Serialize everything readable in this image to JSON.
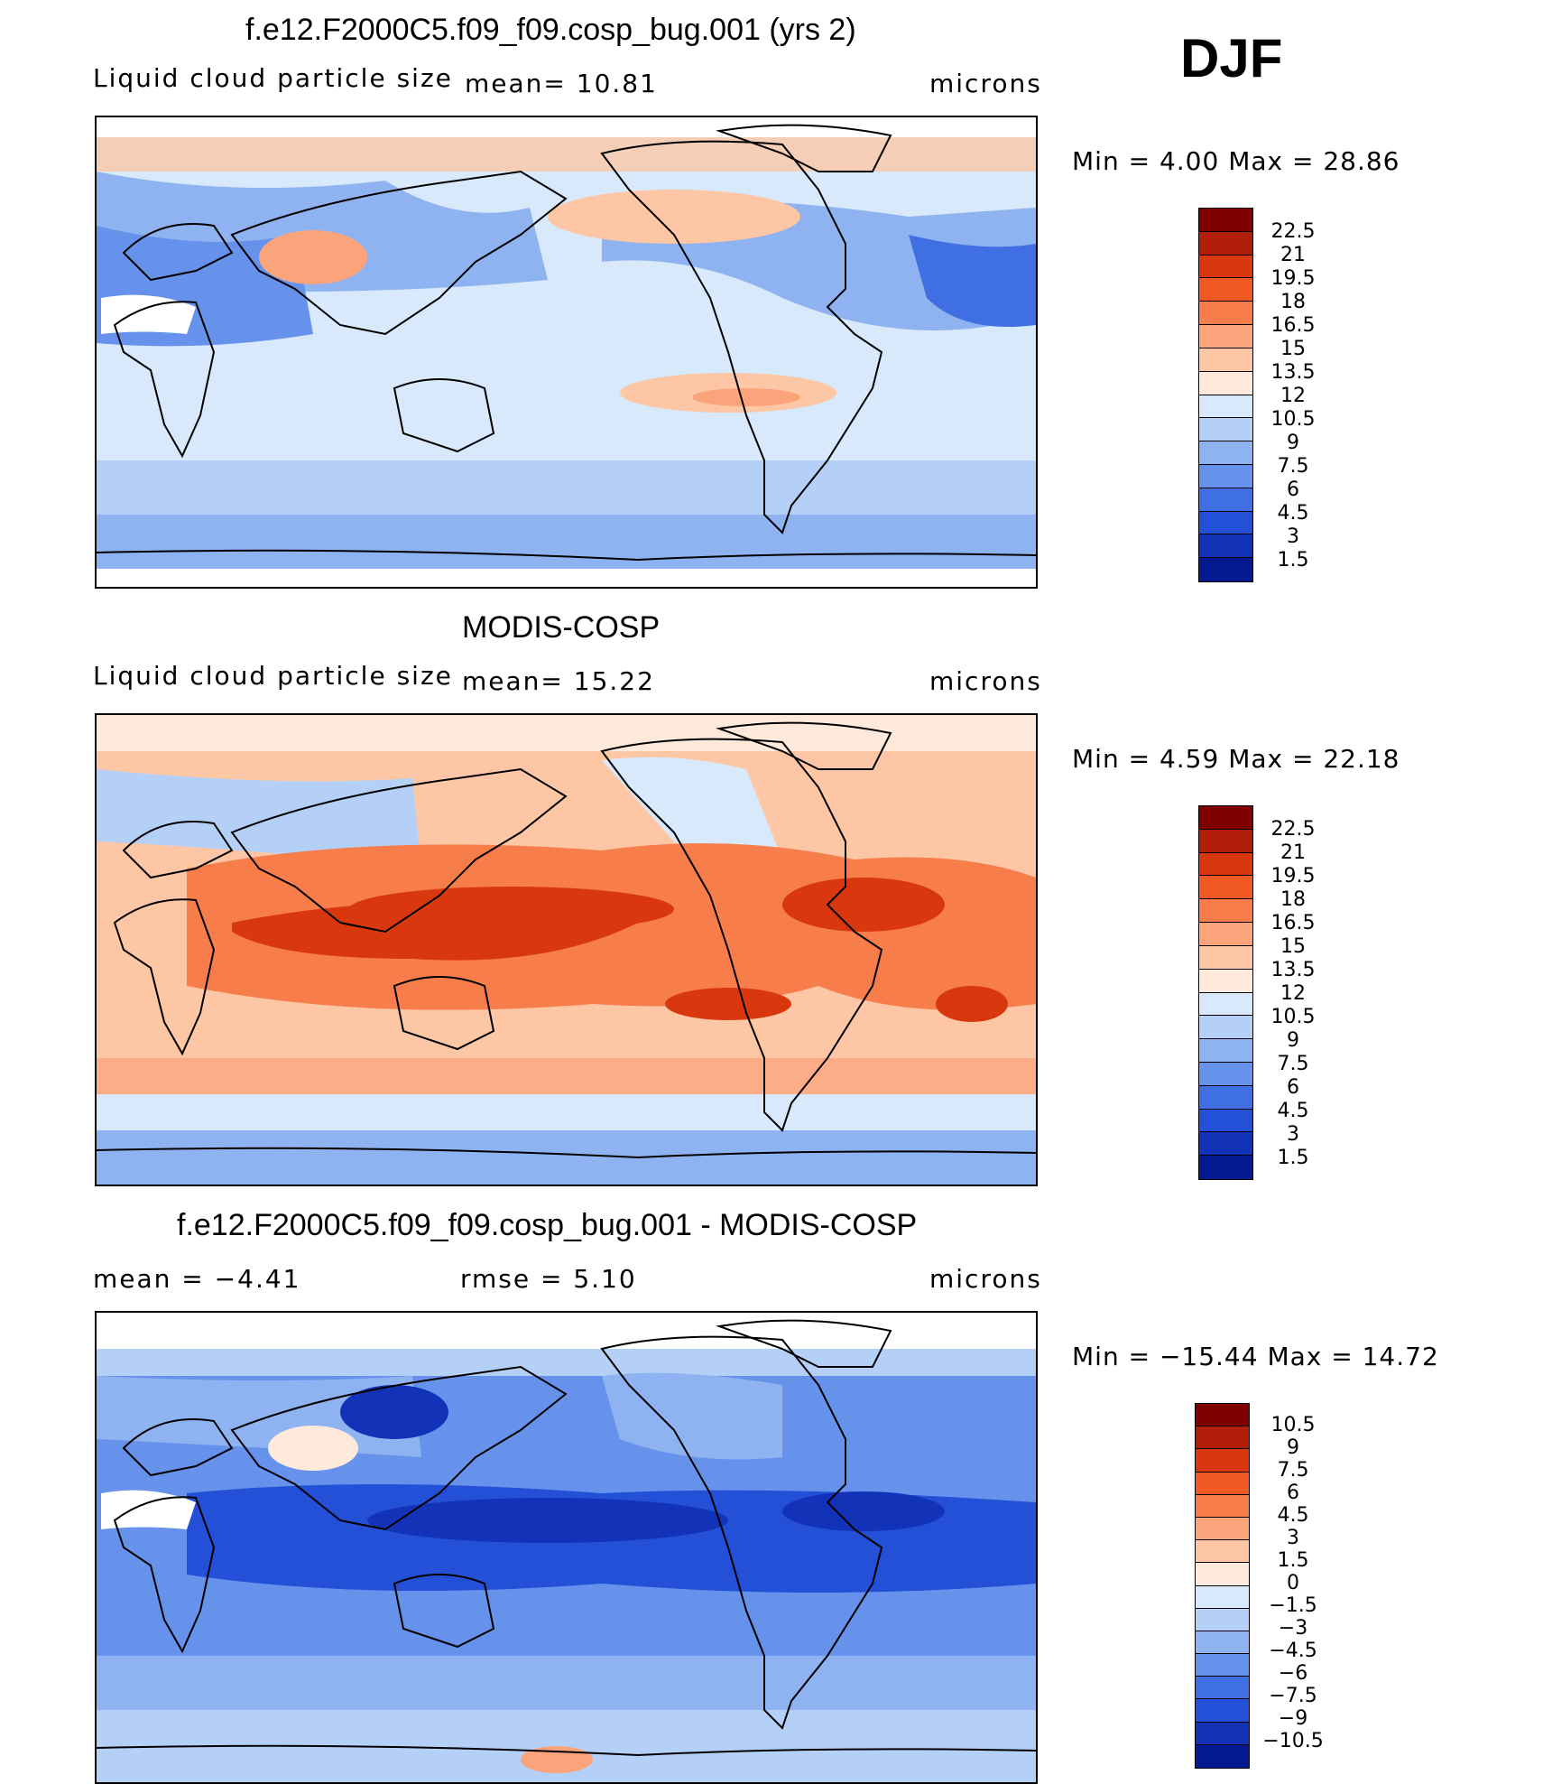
{
  "season": "DJF",
  "panels": [
    {
      "id": "model",
      "title": "f.e12.F2000C5.f09_f09.cosp_bug.001 (yrs 2)",
      "left_label": "Liquid cloud particle size",
      "mid_label": "mean=   10.81",
      "right_label": "microns",
      "minmax": "Min  =     4.00  Max  =    28.86",
      "colorbar_ticks": [
        "22.5",
        "21",
        "19.5",
        "18",
        "16.5",
        "15",
        "13.5",
        "12",
        "10.5",
        "9",
        "7.5",
        "6",
        "4.5",
        "3",
        "1.5"
      ]
    },
    {
      "id": "obs",
      "title": "MODIS-COSP",
      "left_label": "Liquid cloud particle size",
      "mid_label": "mean=   15.22",
      "right_label": "microns",
      "minmax": "Min  =     4.59  Max  =    22.18",
      "colorbar_ticks": [
        "22.5",
        "21",
        "19.5",
        "18",
        "16.5",
        "15",
        "13.5",
        "12",
        "10.5",
        "9",
        "7.5",
        "6",
        "4.5",
        "3",
        "1.5"
      ]
    },
    {
      "id": "diff",
      "title": "f.e12.F2000C5.f09_f09.cosp_bug.001 - MODIS-COSP",
      "left_label": "mean  =   −4.41",
      "mid_label": "rmse  =     5.10",
      "right_label": "microns",
      "minmax": "Min  =  −15.44  Max  =    14.72",
      "colorbar_ticks": [
        "10.5",
        "9",
        "7.5",
        "6",
        "4.5",
        "3",
        "1.5",
        "0",
        "−1.5",
        "−3",
        "−4.5",
        "−6",
        "−7.5",
        "−9",
        "−10.5"
      ]
    }
  ],
  "colors": {
    "scale": [
      "#7f0000",
      "#b01e0a",
      "#d9380e",
      "#f05a22",
      "#f77e4a",
      "#fba37a",
      "#fdc7a6",
      "#ffe9da",
      "#d8e9fb",
      "#b5d0f6",
      "#8fb3f1",
      "#6692ec",
      "#3f6fe3",
      "#2350d6",
      "#1233b8",
      "#061a8f"
    ]
  }
}
